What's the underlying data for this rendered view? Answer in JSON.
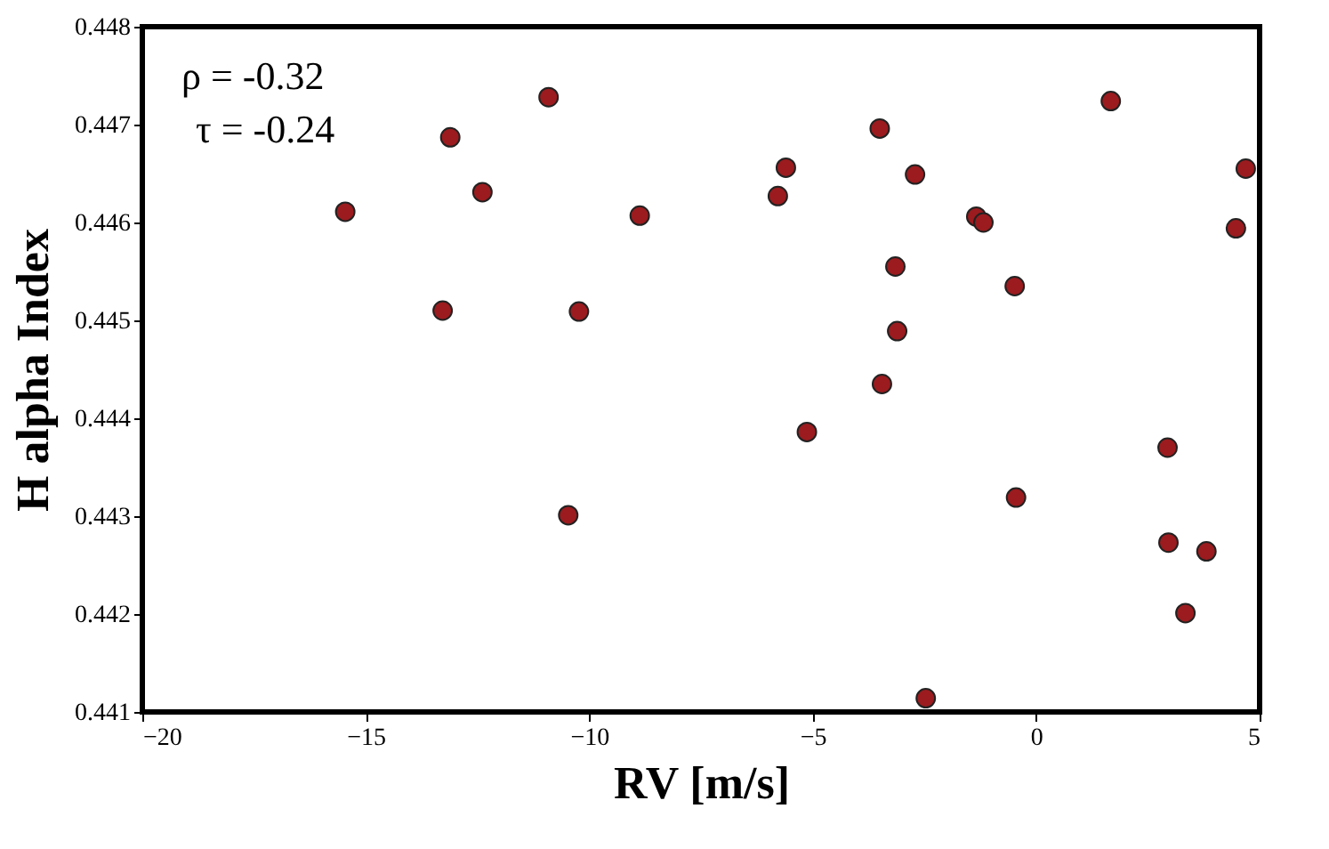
{
  "chart_data": {
    "type": "scatter",
    "xlabel": "RV [m/s]",
    "ylabel": "H alpha Index",
    "annotations": [
      "ρ = -0.32",
      "τ = -0.24"
    ],
    "x": [
      -15.46,
      -13.11,
      -12.39,
      -10.91,
      -8.87,
      -13.28,
      -10.23,
      -10.47,
      1.67,
      -3.5,
      -5.6,
      -2.71,
      -5.78,
      4.69,
      -1.34,
      -1.18,
      4.47,
      -3.15,
      -0.48,
      -3.11,
      -3.45,
      -5.13,
      2.94,
      -0.45,
      2.96,
      3.81,
      3.34,
      -2.47
    ],
    "series": [
      {
        "color": "#9b1b1e",
        "values": [
          0.44611,
          0.44687,
          0.44631,
          0.44728,
          0.44607,
          0.4451,
          0.44509,
          0.44301,
          0.44724,
          0.44696,
          0.44656,
          0.44649,
          0.44627,
          0.44655,
          0.44606,
          0.446,
          0.44594,
          0.44555,
          0.44535,
          0.44489,
          0.44435,
          0.44386,
          0.4437,
          0.44319,
          0.44273,
          0.44264,
          0.44201,
          0.44114
        ]
      }
    ],
    "xlim": [
      -20,
      5
    ],
    "xticks": [
      -20,
      -15,
      -10,
      -5,
      0,
      5
    ],
    "ylim": [
      0.441,
      0.448
    ],
    "yticks": [
      0.441,
      0.442,
      0.443,
      0.444,
      0.445,
      0.446,
      0.447,
      0.448
    ],
    "marker": "circle",
    "grid": false
  }
}
